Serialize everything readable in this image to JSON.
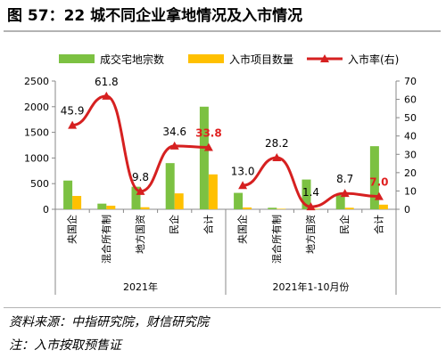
{
  "title": "图 57：22 城不同企业拿地情况及入市情况",
  "chart_data": {
    "type": "bar",
    "groups": [
      "2021年",
      "2021年1-10月份"
    ],
    "categories": [
      "央国企",
      "混合所有制",
      "地方国资",
      "民企",
      "合计",
      "央国企",
      "混合所有制",
      "地方国资",
      "民企",
      "合计"
    ],
    "series": [
      {
        "name": "成交宅地宗数",
        "type": "bar",
        "axis": "left",
        "color": "#7cc142",
        "values": [
          560,
          110,
          440,
          900,
          2000,
          320,
          30,
          580,
          280,
          1230
        ]
      },
      {
        "name": "入市项目数量",
        "type": "bar",
        "axis": "left",
        "color": "#ffc000",
        "values": [
          260,
          70,
          40,
          310,
          680,
          35,
          10,
          10,
          30,
          90
        ]
      },
      {
        "name": "入市率(右)",
        "type": "line",
        "axis": "right",
        "color": "#d62020",
        "values": [
          45.9,
          61.8,
          9.8,
          34.6,
          33.8,
          13.0,
          28.2,
          1.4,
          8.7,
          7.0
        ],
        "labels": [
          "45.9",
          "61.8",
          "9.8",
          "34.6",
          "33.8",
          "13.0",
          "28.2",
          "1.4",
          "8.7",
          "7.0"
        ]
      }
    ],
    "highlight_label_indices": [
      4,
      9
    ],
    "highlight_label_color": "#e02020",
    "y_left": {
      "min": 0,
      "max": 2500,
      "step": 500,
      "ticks": [
        "0",
        "500",
        "1000",
        "1500",
        "2000",
        "2500"
      ]
    },
    "y_right": {
      "min": 0,
      "max": 70,
      "step": 10,
      "ticks": [
        "0",
        "10",
        "20",
        "30",
        "40",
        "50",
        "60",
        "70"
      ]
    },
    "legend_position": "top",
    "grid": false
  },
  "source": "资料来源：中指研究院，财信研究院",
  "footnote": "注：入市按取预售证"
}
